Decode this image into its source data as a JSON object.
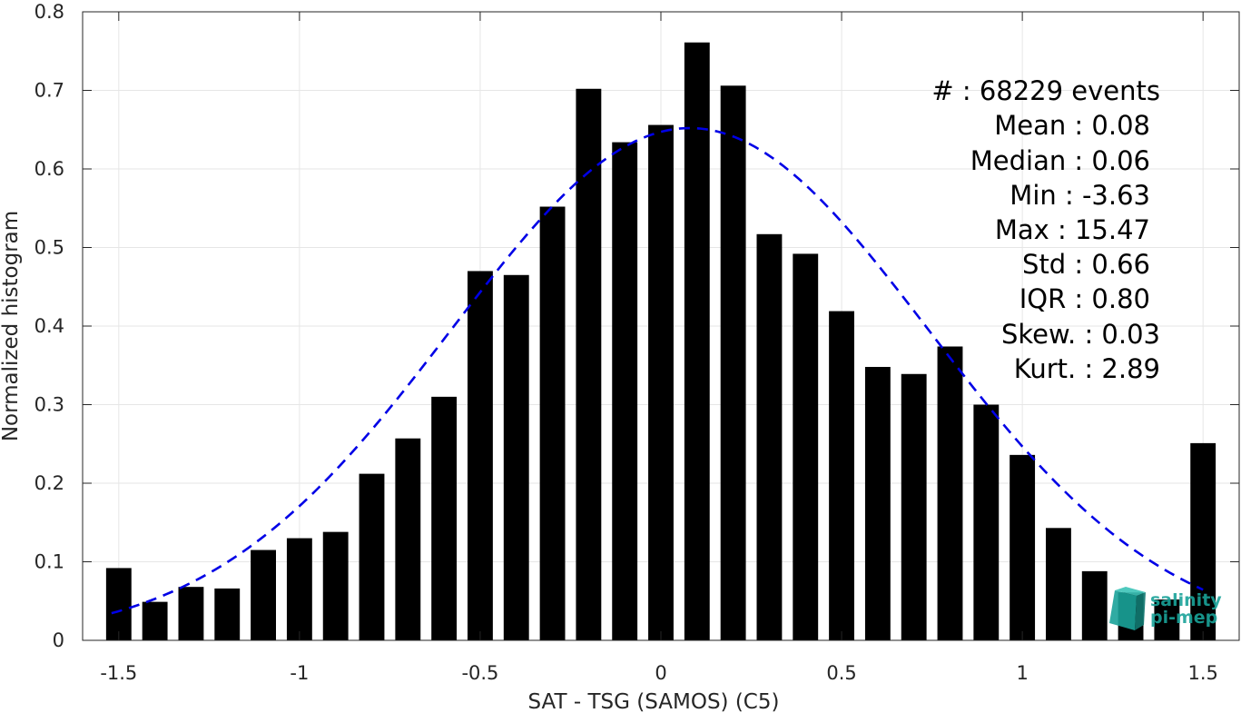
{
  "chart_data": {
    "type": "bar",
    "title": "",
    "xlabel": "SAT - TSG (SAMOS) (C5)",
    "ylabel": "Normalized histogram",
    "xlim": [
      -1.6,
      1.6
    ],
    "ylim": [
      0,
      0.8
    ],
    "x_ticks": [
      "-1.5",
      "-1",
      "-0.5",
      "0",
      "0.5",
      "1",
      "1.5"
    ],
    "y_ticks": [
      "0",
      "0.1",
      "0.2",
      "0.3",
      "0.4",
      "0.5",
      "0.6",
      "0.7",
      "0.8"
    ],
    "grid": true,
    "bin_centers": [
      -1.5,
      -1.4,
      -1.3,
      -1.2,
      -1.1,
      -1.0,
      -0.9,
      -0.8,
      -0.7,
      -0.6,
      -0.5,
      -0.4,
      -0.3,
      -0.2,
      -0.1,
      0.0,
      0.1,
      0.2,
      0.3,
      0.4,
      0.5,
      0.6,
      0.7,
      0.8,
      0.9,
      1.0,
      1.1,
      1.2,
      1.3,
      1.4,
      1.5
    ],
    "values": [
      0.092,
      0.049,
      0.068,
      0.066,
      0.115,
      0.13,
      0.138,
      0.212,
      0.257,
      0.31,
      0.47,
      0.465,
      0.552,
      0.702,
      0.634,
      0.656,
      0.761,
      0.706,
      0.517,
      0.492,
      0.419,
      0.348,
      0.339,
      0.374,
      0.3,
      0.236,
      0.143,
      0.088,
      0.061,
      0.052,
      0.251
    ],
    "bar_color": "#000000",
    "fit_curve": {
      "type": "gaussian",
      "style": "dashed",
      "color": "#0000e6",
      "mean": 0.08,
      "std": 0.66,
      "peak": 0.652,
      "x_range": [
        -1.52,
        1.5
      ]
    }
  },
  "stats": {
    "count": "#  : 68229 events",
    "mean": "Mean : 0.08",
    "median": "Median : 0.06",
    "min": "Min : -3.63",
    "max": "Max : 15.47",
    "std": "Std : 0.66",
    "iqr": "IQR : 0.80",
    "skew": "Skew. : 0.03",
    "kurt": "Kurt. : 2.89"
  },
  "logo": {
    "line1": "salinity",
    "line2": "pi-mep"
  }
}
